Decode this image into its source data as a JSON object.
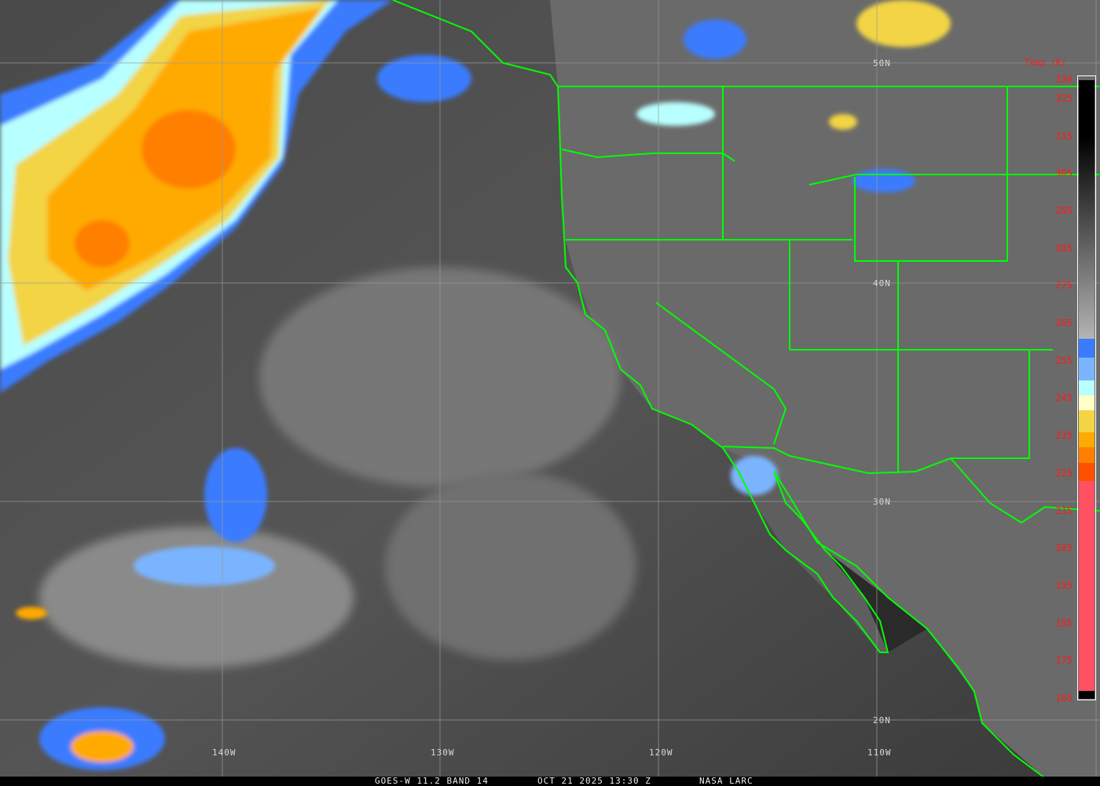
{
  "caption": {
    "product": "GOES-W 11.2 BAND 14",
    "datetime": "OCT 21 2025 13:30 Z",
    "source": "NASA LARC"
  },
  "colorbar": {
    "title": "Temp [K]",
    "ticks": [
      "330",
      "325",
      "315",
      "305",
      "295",
      "285",
      "275",
      "265",
      "255",
      "245",
      "235",
      "225",
      "215",
      "205",
      "195",
      "185",
      "175",
      "165"
    ],
    "range": [
      165,
      330
    ],
    "stops": [
      {
        "from": 330,
        "to": 315,
        "color": "#000000"
      },
      {
        "from": 315,
        "to": 261,
        "color": "gradient #000000-#b4b4b4"
      },
      {
        "from": 261,
        "to": 256,
        "color": "#3a7bff"
      },
      {
        "from": 256,
        "to": 250,
        "color": "#7ab4ff"
      },
      {
        "from": 250,
        "to": 246,
        "color": "#b8ffff"
      },
      {
        "from": 246,
        "to": 242,
        "color": "#ffffc8"
      },
      {
        "from": 242,
        "to": 236,
        "color": "#f2d444"
      },
      {
        "from": 236,
        "to": 232,
        "color": "#ffaa00"
      },
      {
        "from": 232,
        "to": 228,
        "color": "#ff7f00"
      },
      {
        "from": 228,
        "to": 223,
        "color": "#ff5000"
      },
      {
        "from": 223,
        "to": 167,
        "color": "#ff5064"
      },
      {
        "from": 167,
        "to": 165,
        "color": "#000000"
      }
    ]
  },
  "grid": {
    "lat_labels": [
      "50N",
      "40N",
      "30N",
      "20N"
    ],
    "lon_labels": [
      "140W",
      "130W",
      "120W",
      "110W"
    ]
  },
  "colors": {
    "borders": "#00ff00",
    "grid": "#9a9a9a",
    "labels": "#ff1a1a"
  }
}
